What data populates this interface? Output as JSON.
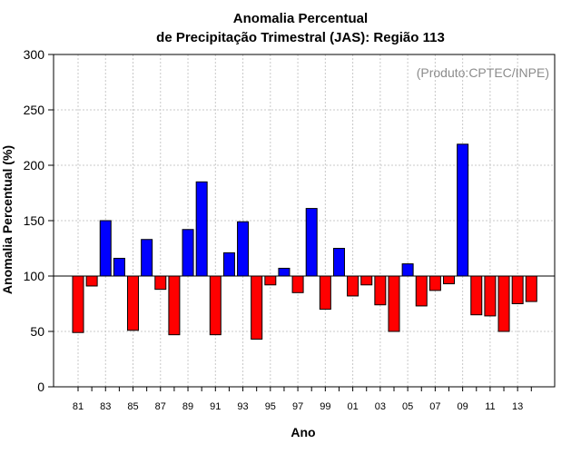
{
  "chart_data": {
    "type": "bar",
    "title_line1": "Anomalia Percentual",
    "title_line2": "de Precipitação Trimestral (JAS): Região 113",
    "xlabel": "Ano",
    "ylabel": "Anomalia Percentual (%)",
    "credit": "(Produto:CPTEC/INPE)",
    "baseline": 100,
    "ylim": [
      0,
      300
    ],
    "yticks": [
      0,
      50,
      100,
      150,
      200,
      250,
      300
    ],
    "grid": true,
    "categories": [
      "81",
      "82",
      "83",
      "84",
      "85",
      "86",
      "87",
      "88",
      "89",
      "90",
      "91",
      "92",
      "93",
      "94",
      "95",
      "96",
      "97",
      "98",
      "99",
      "00",
      "01",
      "02",
      "03",
      "04",
      "05",
      "06",
      "07",
      "08",
      "09",
      "10",
      "11",
      "12",
      "13",
      "14"
    ],
    "xtick_labels": [
      "81",
      "83",
      "85",
      "87",
      "89",
      "91",
      "93",
      "95",
      "97",
      "99",
      "01",
      "03",
      "05",
      "07",
      "09",
      "11",
      "13"
    ],
    "values": [
      49,
      91,
      150,
      116,
      51,
      133,
      88,
      47,
      142,
      185,
      47,
      121,
      149,
      43,
      92,
      107,
      85,
      161,
      70,
      125,
      82,
      92,
      74,
      50,
      111,
      73,
      87,
      93,
      219,
      65,
      64,
      50,
      75,
      77
    ],
    "colors": {
      "above": "#0000ff",
      "below": "#ff0000",
      "grid": "#c8c8c8"
    }
  }
}
